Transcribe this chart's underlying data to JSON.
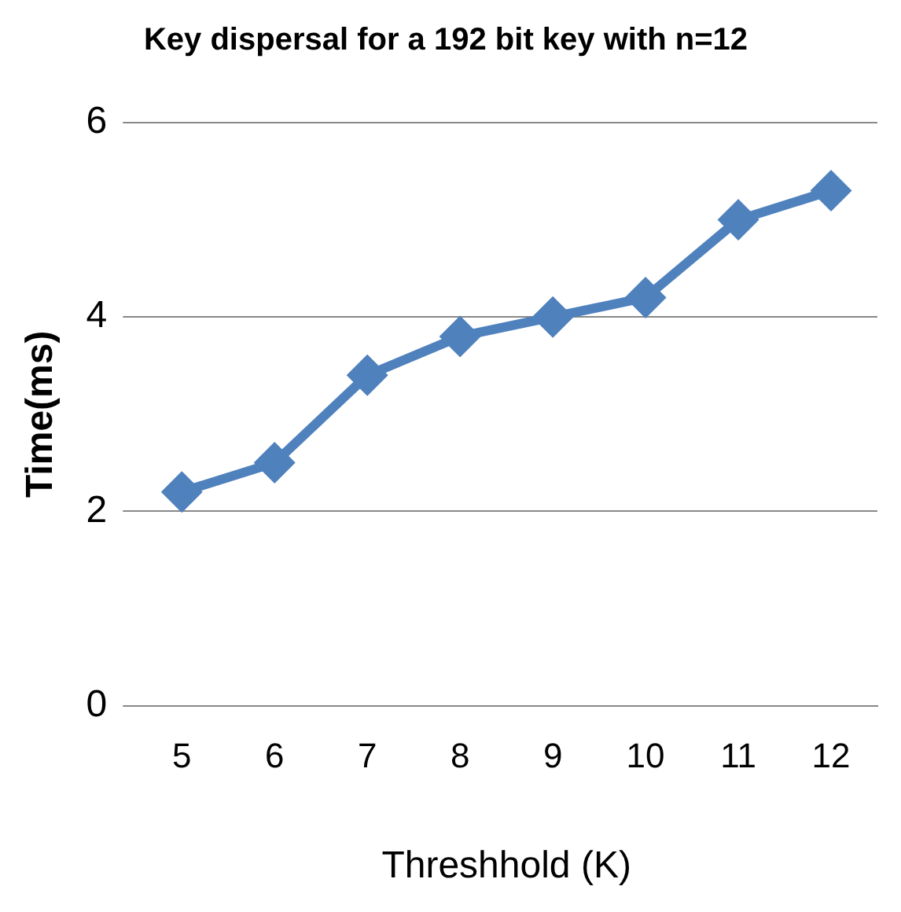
{
  "chart_data": {
    "type": "line",
    "title": "Key dispersal for a 192 bit key with n=12",
    "xlabel": "Threshhold (K)",
    "ylabel": "Time(ms)",
    "categories": [
      "5",
      "6",
      "7",
      "8",
      "9",
      "10",
      "11",
      "12"
    ],
    "series": [
      {
        "color": "#4f81bd",
        "values": [
          2.2,
          2.5,
          3.4,
          3.8,
          4.0,
          4.2,
          5.0,
          5.3
        ]
      }
    ],
    "ylim": [
      0,
      6
    ],
    "yticks": [
      0,
      2,
      4,
      6
    ],
    "grid": "y",
    "legend": false,
    "marker": "diamond",
    "line_style": "solid"
  }
}
